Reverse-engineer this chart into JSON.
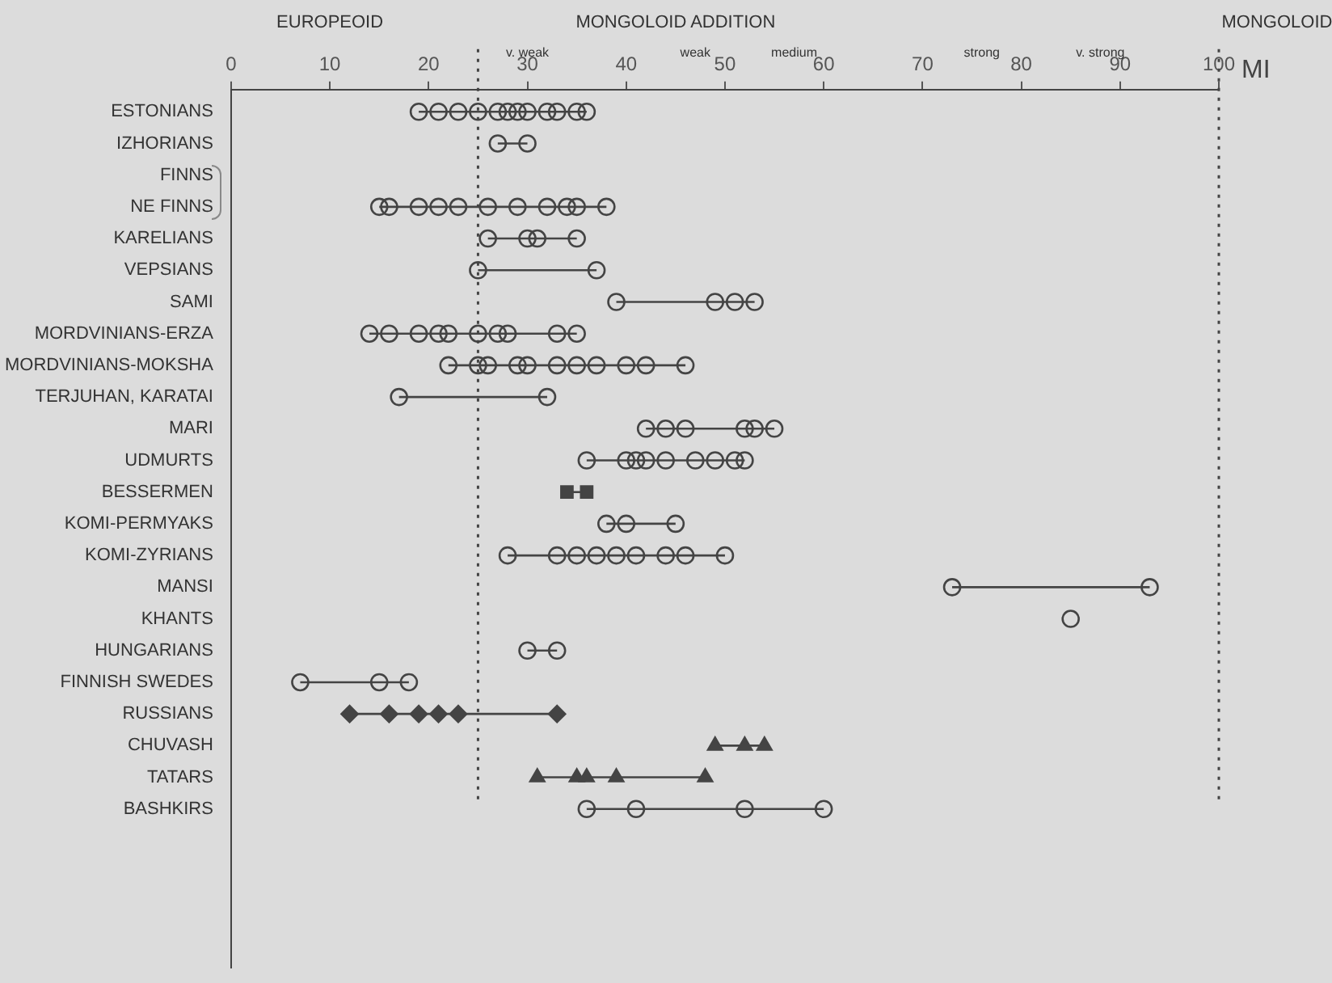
{
  "chart_data": {
    "type": "line",
    "orientation": "horizontal",
    "xlabel": "MI",
    "categories": [
      "ESTONIANS",
      "IZHORIANS",
      "FINNS",
      "NE FINNS",
      "KARELIANS",
      "VEPSIANS",
      "SAMI",
      "MORDVINIANS-ERZA",
      "MORDVINIANS-MOKSHA",
      "TERJUHAN, KARATAI",
      "MARI",
      "UDMURTS",
      "BESSERMEN",
      "KOMI-PERMYAKS",
      "KOMI-ZYRIANS",
      "MANSI",
      "KHANTS",
      "HUNGARIANS",
      "FINNISH SWEDES",
      "RUSSIANS",
      "CHUVASH",
      "TATARS",
      "BASHKIRS"
    ],
    "xlim": [
      0,
      100
    ],
    "xticks": [
      0,
      10,
      20,
      30,
      40,
      50,
      60,
      70,
      80,
      90,
      100
    ],
    "grid": false,
    "legend": false,
    "line_style": "solid",
    "annotations": [
      "EUROPEOID",
      "MONGOLOID ADDITION",
      "MONGOLOID",
      "v. weak",
      "weak",
      "medium",
      "strong",
      "v. strong"
    ],
    "ref_lines": [
      {
        "axis": "x",
        "value": 25,
        "color": "#444444",
        "line_style": "dotted"
      },
      {
        "axis": "x",
        "value": 100,
        "color": "#444444",
        "line_style": "dotted"
      }
    ],
    "series": [
      {
        "color": "#444444",
        "marker": "circle",
        "x": [
          "ESTONIANS",
          "ESTONIANS",
          "ESTONIANS",
          "ESTONIANS",
          "ESTONIANS",
          "ESTONIANS",
          "ESTONIANS",
          "ESTONIANS",
          "ESTONIANS",
          "ESTONIANS",
          "ESTONIANS",
          "ESTONIANS"
        ],
        "values": [
          19,
          21,
          23,
          25,
          27,
          28,
          29,
          30,
          32,
          33,
          35,
          36
        ]
      },
      {
        "color": "#444444",
        "marker": "circle",
        "x": [
          "IZHORIANS",
          "IZHORIANS"
        ],
        "values": [
          27,
          30
        ]
      },
      {
        "color": "#444444",
        "marker": "circle",
        "x": [
          "NE FINNS",
          "NE FINNS",
          "NE FINNS",
          "NE FINNS",
          "NE FINNS",
          "NE FINNS",
          "NE FINNS",
          "NE FINNS",
          "NE FINNS",
          "NE FINNS",
          "NE FINNS"
        ],
        "values": [
          15,
          16,
          19,
          21,
          23,
          26,
          29,
          32,
          34,
          35,
          38
        ]
      },
      {
        "color": "#444444",
        "marker": "circle",
        "x": [
          "KARELIANS",
          "KARELIANS",
          "KARELIANS",
          "KARELIANS"
        ],
        "values": [
          26,
          30,
          31,
          35
        ]
      },
      {
        "color": "#444444",
        "marker": "circle",
        "x": [
          "VEPSIANS",
          "VEPSIANS"
        ],
        "values": [
          25,
          37
        ]
      },
      {
        "color": "#444444",
        "marker": "circle",
        "x": [
          "SAMI",
          "SAMI",
          "SAMI",
          "SAMI"
        ],
        "values": [
          39,
          49,
          51,
          53
        ]
      },
      {
        "color": "#444444",
        "marker": "circle",
        "x": [
          "MORDVINIANS-ERZA",
          "MORDVINIANS-ERZA",
          "MORDVINIANS-ERZA",
          "MORDVINIANS-ERZA",
          "MORDVINIANS-ERZA",
          "MORDVINIANS-ERZA",
          "MORDVINIANS-ERZA",
          "MORDVINIANS-ERZA",
          "MORDVINIANS-ERZA",
          "MORDVINIANS-ERZA"
        ],
        "values": [
          14,
          16,
          19,
          21,
          22,
          25,
          27,
          28,
          33,
          35
        ]
      },
      {
        "color": "#444444",
        "marker": "circle",
        "x": [
          "MORDVINIANS-MOKSHA",
          "MORDVINIANS-MOKSHA",
          "MORDVINIANS-MOKSHA",
          "MORDVINIANS-MOKSHA",
          "MORDVINIANS-MOKSHA",
          "MORDVINIANS-MOKSHA",
          "MORDVINIANS-MOKSHA",
          "MORDVINIANS-MOKSHA",
          "MORDVINIANS-MOKSHA",
          "MORDVINIANS-MOKSHA",
          "MORDVINIANS-MOKSHA"
        ],
        "values": [
          22,
          25,
          26,
          29,
          30,
          33,
          35,
          37,
          40,
          42,
          46
        ]
      },
      {
        "color": "#444444",
        "marker": "circle",
        "x": [
          "TERJUHAN, KARATAI",
          "TERJUHAN, KARATAI"
        ],
        "values": [
          17,
          32
        ]
      },
      {
        "color": "#444444",
        "marker": "circle",
        "x": [
          "MARI",
          "MARI",
          "MARI",
          "MARI",
          "MARI",
          "MARI"
        ],
        "values": [
          42,
          44,
          46,
          52,
          53,
          55
        ]
      },
      {
        "color": "#444444",
        "marker": "circle",
        "x": [
          "UDMURTS",
          "UDMURTS",
          "UDMURTS",
          "UDMURTS",
          "UDMURTS",
          "UDMURTS",
          "UDMURTS",
          "UDMURTS",
          "UDMURTS"
        ],
        "values": [
          36,
          40,
          41,
          42,
          44,
          47,
          49,
          51,
          52
        ]
      },
      {
        "color": "#444444",
        "marker": "square",
        "x": [
          "BESSERMEN",
          "BESSERMEN"
        ],
        "values": [
          34,
          36
        ]
      },
      {
        "color": "#444444",
        "marker": "circle",
        "x": [
          "KOMI-PERMYAKS",
          "KOMI-PERMYAKS",
          "KOMI-PERMYAKS"
        ],
        "values": [
          38,
          40,
          45
        ]
      },
      {
        "color": "#444444",
        "marker": "circle",
        "x": [
          "KOMI-ZYRIANS",
          "KOMI-ZYRIANS",
          "KOMI-ZYRIANS",
          "KOMI-ZYRIANS",
          "KOMI-ZYRIANS",
          "KOMI-ZYRIANS",
          "KOMI-ZYRIANS",
          "KOMI-ZYRIANS",
          "KOMI-ZYRIANS"
        ],
        "values": [
          28,
          33,
          35,
          37,
          39,
          41,
          44,
          46,
          50
        ]
      },
      {
        "color": "#444444",
        "marker": "circle",
        "x": [
          "MANSI",
          "MANSI"
        ],
        "values": [
          73,
          93
        ]
      },
      {
        "color": "#444444",
        "marker": "circle",
        "x": [
          "KHANTS"
        ],
        "values": [
          85
        ]
      },
      {
        "color": "#444444",
        "marker": "circle",
        "x": [
          "HUNGARIANS",
          "HUNGARIANS"
        ],
        "values": [
          30,
          33
        ]
      },
      {
        "color": "#444444",
        "marker": "circle",
        "x": [
          "FINNISH SWEDES",
          "FINNISH SWEDES",
          "FINNISH SWEDES"
        ],
        "values": [
          7,
          15,
          18
        ]
      },
      {
        "color": "#444444",
        "marker": "diamond",
        "x": [
          "RUSSIANS",
          "RUSSIANS",
          "RUSSIANS",
          "RUSSIANS",
          "RUSSIANS",
          "RUSSIANS"
        ],
        "values": [
          12,
          16,
          19,
          21,
          23,
          33
        ]
      },
      {
        "color": "#444444",
        "marker": "triangle",
        "x": [
          "CHUVASH",
          "CHUVASH",
          "CHUVASH"
        ],
        "values": [
          49,
          52,
          54
        ]
      },
      {
        "color": "#444444",
        "marker": "triangle",
        "x": [
          "TATARS",
          "TATARS",
          "TATARS",
          "TATARS",
          "TATARS"
        ],
        "values": [
          31,
          35,
          36,
          39,
          48
        ]
      },
      {
        "color": "#444444",
        "marker": "circle",
        "x": [
          "BASHKIRS",
          "BASHKIRS",
          "BASHKIRS",
          "BASHKIRS"
        ],
        "values": [
          36,
          41,
          52,
          60
        ]
      }
    ]
  }
}
